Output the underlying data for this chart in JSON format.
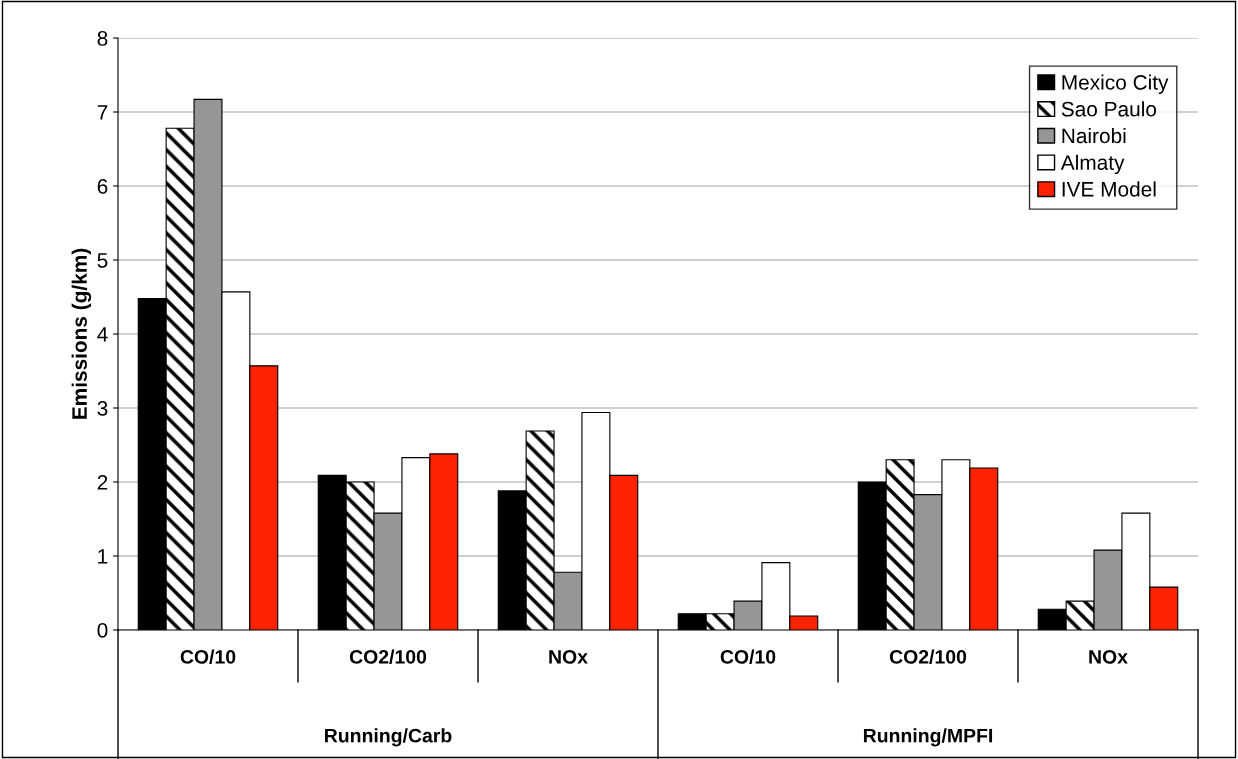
{
  "chart_data": {
    "type": "bar",
    "ylabel": "Emissions (g/km)",
    "categories": [
      "CO/10",
      "CO2/100",
      "NOx",
      "CO/10",
      "CO2/100",
      "NOx"
    ],
    "series": [
      {
        "name": "Mexico City",
        "color": "#000000",
        "values": [
          4.48,
          2.09,
          1.88,
          0.22,
          2.0,
          0.28
        ]
      },
      {
        "name": "Sao Paulo",
        "color": "#000000",
        "values": [
          6.78,
          2.0,
          2.69,
          0.22,
          2.3,
          0.39
        ]
      },
      {
        "name": "Nairobi",
        "color": "#969696",
        "values": [
          7.17,
          1.58,
          0.78,
          0.39,
          1.83,
          1.08
        ]
      },
      {
        "name": "Almaty",
        "color": "#ffffff",
        "values": [
          4.57,
          2.33,
          2.94,
          0.91,
          2.3,
          1.58
        ]
      },
      {
        "name": "IVE Model",
        "color": "#ff2200",
        "values": [
          3.57,
          2.38,
          2.09,
          0.19,
          2.19,
          0.58
        ]
      }
    ],
    "annotations": [
      "Running/Carb",
      "Running/MPFI"
    ],
    "ylim": [
      0,
      8
    ],
    "yticks": [
      0,
      1,
      2,
      3,
      4,
      5,
      6,
      7,
      8
    ],
    "grid": "y",
    "legend": "top right"
  }
}
